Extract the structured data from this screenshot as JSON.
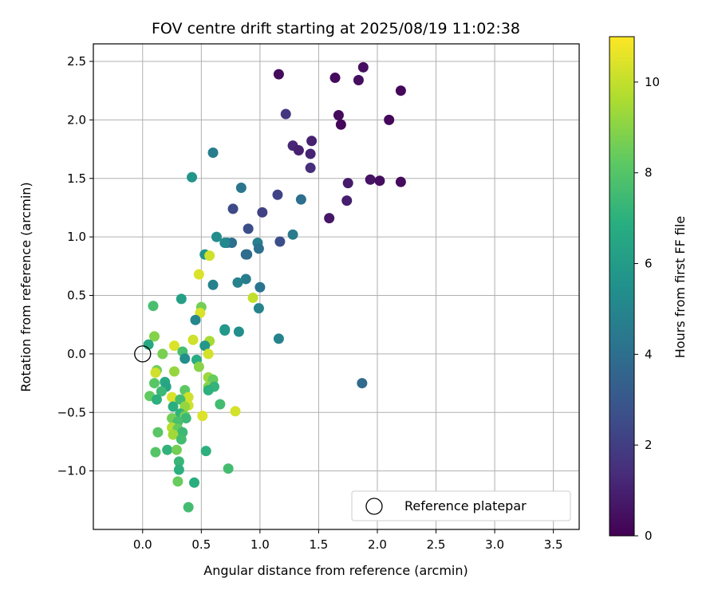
{
  "chart_data": {
    "type": "scatter",
    "title": "FOV centre drift starting at 2025/08/19 11:02:38",
    "xlabel": "Angular distance from reference (arcmin)",
    "ylabel": "Rotation from reference (arcmin)",
    "xlim": [
      -0.42,
      3.72
    ],
    "ylim": [
      -1.5,
      2.65
    ],
    "xticks": [
      0.0,
      0.5,
      1.0,
      1.5,
      2.0,
      2.5,
      3.0,
      3.5
    ],
    "xtick_labels": [
      "0.0",
      "0.5",
      "1.0",
      "1.5",
      "2.0",
      "2.5",
      "3.0",
      "3.5"
    ],
    "yticks": [
      -1.0,
      -0.5,
      0.0,
      0.5,
      1.0,
      1.5,
      2.0,
      2.5
    ],
    "ytick_labels": [
      "−1.0",
      "−0.5",
      "0.0",
      "0.5",
      "1.0",
      "1.5",
      "2.0",
      "2.5"
    ],
    "grid": true,
    "legend": {
      "placement": "lower-right",
      "entries": [
        "Reference platepar"
      ]
    },
    "reference_point": {
      "x": 0.0,
      "y": 0.0,
      "label": "Reference platepar"
    },
    "colorbar": {
      "label": "Hours from first FF file",
      "colormap": "viridis",
      "range": [
        0,
        11
      ],
      "ticks": [
        0,
        2,
        4,
        6,
        8,
        10
      ],
      "tick_labels": [
        "0",
        "2",
        "4",
        "6",
        "8",
        "10"
      ]
    },
    "points": [
      {
        "x": 1.16,
        "y": 2.39,
        "c": 0.3
      },
      {
        "x": 1.64,
        "y": 2.36,
        "c": 0.3
      },
      {
        "x": 1.88,
        "y": 2.45,
        "c": 0.4
      },
      {
        "x": 1.84,
        "y": 2.34,
        "c": 0.4
      },
      {
        "x": 2.2,
        "y": 2.25,
        "c": 0.2
      },
      {
        "x": 1.67,
        "y": 2.04,
        "c": 0.3
      },
      {
        "x": 1.69,
        "y": 1.96,
        "c": 0.2
      },
      {
        "x": 2.1,
        "y": 2.0,
        "c": 0.2
      },
      {
        "x": 1.22,
        "y": 2.05,
        "c": 1.8
      },
      {
        "x": 1.44,
        "y": 1.82,
        "c": 1.0
      },
      {
        "x": 1.28,
        "y": 1.78,
        "c": 1.2
      },
      {
        "x": 1.33,
        "y": 1.74,
        "c": 1.0
      },
      {
        "x": 1.43,
        "y": 1.71,
        "c": 1.1
      },
      {
        "x": 1.43,
        "y": 1.59,
        "c": 1.5
      },
      {
        "x": 1.75,
        "y": 1.46,
        "c": 0.8
      },
      {
        "x": 1.94,
        "y": 1.49,
        "c": 0.6
      },
      {
        "x": 2.02,
        "y": 1.48,
        "c": 0.4
      },
      {
        "x": 2.2,
        "y": 1.47,
        "c": 0.3
      },
      {
        "x": 1.74,
        "y": 1.31,
        "c": 0.9
      },
      {
        "x": 1.59,
        "y": 1.16,
        "c": 0.7
      },
      {
        "x": 0.6,
        "y": 1.72,
        "c": 4.6
      },
      {
        "x": 0.42,
        "y": 1.51,
        "c": 5.7
      },
      {
        "x": 0.84,
        "y": 1.42,
        "c": 4.3
      },
      {
        "x": 1.15,
        "y": 1.36,
        "c": 2.2
      },
      {
        "x": 1.35,
        "y": 1.32,
        "c": 4.0
      },
      {
        "x": 0.77,
        "y": 1.24,
        "c": 2.4
      },
      {
        "x": 1.02,
        "y": 1.21,
        "c": 2.1
      },
      {
        "x": 0.9,
        "y": 1.07,
        "c": 2.6
      },
      {
        "x": 1.28,
        "y": 1.02,
        "c": 4.5
      },
      {
        "x": 0.63,
        "y": 1.0,
        "c": 5.3
      },
      {
        "x": 1.17,
        "y": 0.96,
        "c": 2.6
      },
      {
        "x": 0.72,
        "y": 0.95,
        "c": 4.4
      },
      {
        "x": 0.76,
        "y": 0.95,
        "c": 4.0
      },
      {
        "x": 0.98,
        "y": 0.95,
        "c": 4.7
      },
      {
        "x": 0.7,
        "y": 0.95,
        "c": 5.1
      },
      {
        "x": 0.99,
        "y": 0.9,
        "c": 4.1
      },
      {
        "x": 0.53,
        "y": 0.85,
        "c": 5.6
      },
      {
        "x": 0.88,
        "y": 0.85,
        "c": 3.6
      },
      {
        "x": 0.89,
        "y": 0.85,
        "c": 3.9
      },
      {
        "x": 0.57,
        "y": 0.84,
        "c": 10.2
      },
      {
        "x": 0.48,
        "y": 0.68,
        "c": 10.4
      },
      {
        "x": 0.88,
        "y": 0.64,
        "c": 4.6
      },
      {
        "x": 0.81,
        "y": 0.61,
        "c": 4.9
      },
      {
        "x": 0.6,
        "y": 0.59,
        "c": 4.8
      },
      {
        "x": 1.0,
        "y": 0.57,
        "c": 4.2
      },
      {
        "x": 0.94,
        "y": 0.48,
        "c": 10.0
      },
      {
        "x": 0.33,
        "y": 0.47,
        "c": 6.2
      },
      {
        "x": 0.09,
        "y": 0.41,
        "c": 7.7
      },
      {
        "x": 0.5,
        "y": 0.4,
        "c": 8.6
      },
      {
        "x": 0.49,
        "y": 0.35,
        "c": 10.4
      },
      {
        "x": 0.99,
        "y": 0.39,
        "c": 4.9
      },
      {
        "x": 0.45,
        "y": 0.29,
        "c": 5.0
      },
      {
        "x": 0.7,
        "y": 0.21,
        "c": 5.6
      },
      {
        "x": 0.7,
        "y": 0.2,
        "c": 5.9
      },
      {
        "x": 0.82,
        "y": 0.19,
        "c": 5.4
      },
      {
        "x": 1.16,
        "y": 0.13,
        "c": 4.9
      },
      {
        "x": 0.1,
        "y": 0.15,
        "c": 8.9
      },
      {
        "x": 0.43,
        "y": 0.12,
        "c": 10.2
      },
      {
        "x": 0.57,
        "y": 0.11,
        "c": 9.5
      },
      {
        "x": 0.05,
        "y": 0.08,
        "c": 6.6
      },
      {
        "x": 0.27,
        "y": 0.07,
        "c": 10.4
      },
      {
        "x": 0.53,
        "y": 0.07,
        "c": 5.8
      },
      {
        "x": 0.34,
        "y": 0.02,
        "c": 7.7
      },
      {
        "x": 0.56,
        "y": 0.0,
        "c": 10.3
      },
      {
        "x": 0.17,
        "y": 0.0,
        "c": 8.7
      },
      {
        "x": 0.36,
        "y": -0.04,
        "c": 5.4
      },
      {
        "x": 0.46,
        "y": -0.05,
        "c": 6.8
      },
      {
        "x": 0.48,
        "y": -0.11,
        "c": 9.0
      },
      {
        "x": 0.12,
        "y": -0.14,
        "c": 8.5
      },
      {
        "x": 0.11,
        "y": -0.16,
        "c": 10.2
      },
      {
        "x": 0.27,
        "y": -0.15,
        "c": 9.2
      },
      {
        "x": 0.56,
        "y": -0.2,
        "c": 9.3
      },
      {
        "x": 0.6,
        "y": -0.22,
        "c": 8.4
      },
      {
        "x": 0.19,
        "y": -0.24,
        "c": 6.7
      },
      {
        "x": 0.1,
        "y": -0.25,
        "c": 8.1
      },
      {
        "x": 0.2,
        "y": -0.28,
        "c": 6.4
      },
      {
        "x": 0.56,
        "y": -0.28,
        "c": 9.0
      },
      {
        "x": 0.61,
        "y": -0.28,
        "c": 7.2
      },
      {
        "x": 0.56,
        "y": -0.31,
        "c": 7.0
      },
      {
        "x": 0.36,
        "y": -0.31,
        "c": 8.2
      },
      {
        "x": 0.16,
        "y": -0.32,
        "c": 7.4
      },
      {
        "x": 0.06,
        "y": -0.36,
        "c": 8.3
      },
      {
        "x": 0.25,
        "y": -0.37,
        "c": 10.4
      },
      {
        "x": 0.39,
        "y": -0.37,
        "c": 10.2
      },
      {
        "x": 0.12,
        "y": -0.39,
        "c": 7.0
      },
      {
        "x": 0.32,
        "y": -0.39,
        "c": 7.6
      },
      {
        "x": 0.66,
        "y": -0.43,
        "c": 7.6
      },
      {
        "x": 0.39,
        "y": -0.44,
        "c": 10.2
      },
      {
        "x": 0.36,
        "y": -0.45,
        "c": 9.2
      },
      {
        "x": 0.26,
        "y": -0.45,
        "c": 6.9
      },
      {
        "x": 0.79,
        "y": -0.49,
        "c": 10.3
      },
      {
        "x": 0.32,
        "y": -0.51,
        "c": 7.1
      },
      {
        "x": 0.51,
        "y": -0.53,
        "c": 10.4
      },
      {
        "x": 0.36,
        "y": -0.53,
        "c": 8.6
      },
      {
        "x": 0.37,
        "y": -0.55,
        "c": 7.4
      },
      {
        "x": 0.25,
        "y": -0.55,
        "c": 8.6
      },
      {
        "x": 0.3,
        "y": -0.58,
        "c": 7.7
      },
      {
        "x": 0.25,
        "y": -0.63,
        "c": 9.8
      },
      {
        "x": 0.3,
        "y": -0.64,
        "c": 8.3
      },
      {
        "x": 0.34,
        "y": -0.67,
        "c": 7.4
      },
      {
        "x": 0.13,
        "y": -0.67,
        "c": 8.1
      },
      {
        "x": 0.26,
        "y": -0.69,
        "c": 9.4
      },
      {
        "x": 0.33,
        "y": -0.73,
        "c": 7.6
      },
      {
        "x": 0.21,
        "y": -0.82,
        "c": 7.1
      },
      {
        "x": 0.29,
        "y": -0.82,
        "c": 8.6
      },
      {
        "x": 0.11,
        "y": -0.84,
        "c": 8.0
      },
      {
        "x": 0.54,
        "y": -0.83,
        "c": 7.0
      },
      {
        "x": 1.87,
        "y": -0.25,
        "c": 3.8
      },
      {
        "x": 0.31,
        "y": -0.92,
        "c": 7.3
      },
      {
        "x": 0.31,
        "y": -0.99,
        "c": 7.0
      },
      {
        "x": 0.73,
        "y": -0.98,
        "c": 7.6
      },
      {
        "x": 0.3,
        "y": -1.09,
        "c": 8.4
      },
      {
        "x": 0.44,
        "y": -1.1,
        "c": 6.9
      },
      {
        "x": 0.39,
        "y": -1.31,
        "c": 7.6
      }
    ]
  }
}
